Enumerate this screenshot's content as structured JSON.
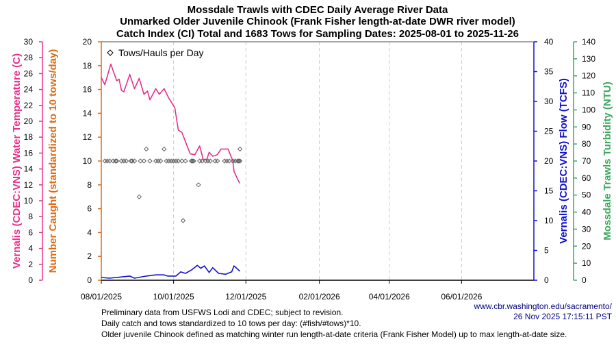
{
  "chart_data": {
    "type": "line",
    "title": [
      "Mossdale Trawls with CDEC Daily Average River Data",
      "Unmarked Older Juvenile Chinook (Frank Fisher length-at-date DWR river model)",
      "Catch Index (CI) Total and 1683 Tows for Sampling Dates: 2025-08-01 to 2025-11-26"
    ],
    "xlim": [
      "2025-08-01",
      "2026-08-01"
    ],
    "x_ticks": [
      "08/01/2025",
      "10/01/2025",
      "12/01/2025",
      "02/01/2026",
      "04/01/2026",
      "06/01/2026"
    ],
    "x_tick_dates": [
      "2025-08-01",
      "2025-10-01",
      "2025-12-01",
      "2026-02-01",
      "2026-04-01",
      "2026-06-01"
    ],
    "grid": "vertical dashed at x ticks",
    "legend": {
      "placement": "top-left",
      "entries": [
        "Tows/Hauls per Day"
      ]
    },
    "axes": {
      "temperature": {
        "label": "Vernalis (CDEC:VNS) Water Temperature (C)",
        "ylim": [
          0,
          30
        ],
        "ticks": [
          0,
          2,
          4,
          6,
          8,
          10,
          12,
          14,
          16,
          18,
          20,
          22,
          24,
          26,
          28,
          30
        ],
        "color": "#e8308a"
      },
      "count": {
        "label": "Number Caught (standardized to 10 tows/day)",
        "ylim": [
          0,
          20
        ],
        "ticks": [
          0,
          2,
          4,
          6,
          8,
          10,
          12,
          14,
          16,
          18,
          20
        ],
        "color": "#e06a10"
      },
      "flow": {
        "label": "Vernalis (CDEC:VNS) Flow (TCFS)",
        "ylim": [
          0,
          40
        ],
        "ticks": [
          0,
          5,
          10,
          15,
          20,
          25,
          30,
          35,
          40
        ],
        "color": "#1010d0"
      },
      "turbidity": {
        "label": "Mossdale Trawls Turbidity (NTU)",
        "ylim": [
          0,
          140
        ],
        "ticks": [
          0,
          10,
          20,
          30,
          40,
          50,
          60,
          70,
          80,
          90,
          100,
          110,
          120,
          130,
          140
        ],
        "color": "#3aa860"
      }
    },
    "series": [
      {
        "axis": "temperature",
        "color": "#e8308a",
        "x": [
          "2025-08-01",
          "2025-08-04",
          "2025-08-09",
          "2025-08-14",
          "2025-08-16",
          "2025-08-18",
          "2025-08-20",
          "2025-08-25",
          "2025-08-29",
          "2025-09-02",
          "2025-09-06",
          "2025-09-09",
          "2025-09-11",
          "2025-09-16",
          "2025-09-19",
          "2025-09-23",
          "2025-09-27",
          "2025-10-02",
          "2025-10-05",
          "2025-10-08",
          "2025-10-15",
          "2025-10-19",
          "2025-10-23",
          "2025-10-26",
          "2025-10-29",
          "2025-10-31",
          "2025-11-03",
          "2025-11-07",
          "2025-11-10",
          "2025-11-16",
          "2025-11-20",
          "2025-11-21",
          "2025-11-25",
          "2025-11-26"
        ],
        "y": [
          25.5,
          24.6,
          27.2,
          25.1,
          25.3,
          23.9,
          23.7,
          25.9,
          24.1,
          25.4,
          23.4,
          23.8,
          22.7,
          24.1,
          23.4,
          24.1,
          22.9,
          21.7,
          18.9,
          18.6,
          15.9,
          15.8,
          16.9,
          15.2,
          15.2,
          16.1,
          15.6,
          15.8,
          16.5,
          16.5,
          15.0,
          13.7,
          12.4,
          12.2
        ]
      },
      {
        "axis": "flow",
        "color": "#1010d0",
        "x": [
          "2025-08-01",
          "2025-08-08",
          "2025-08-25",
          "2025-08-29",
          "2025-09-08",
          "2025-09-16",
          "2025-09-23",
          "2025-09-26",
          "2025-10-03",
          "2025-10-07",
          "2025-10-11",
          "2025-10-16",
          "2025-10-21",
          "2025-10-24",
          "2025-10-27",
          "2025-10-31",
          "2025-11-03",
          "2025-11-08",
          "2025-11-14",
          "2025-11-19",
          "2025-11-21",
          "2025-11-26"
        ],
        "y": [
          0.46,
          0.35,
          0.7,
          0.35,
          0.7,
          0.9,
          0.9,
          0.7,
          0.7,
          1.4,
          1.15,
          1.7,
          2.5,
          2.0,
          2.4,
          1.3,
          2.1,
          1.15,
          1.0,
          1.4,
          2.4,
          1.5
        ]
      },
      {
        "name": "Tows/Hauls per Day",
        "axis": "count",
        "marker": "diamond",
        "color": "#555555",
        "x": [
          "2025-08-04",
          "2025-08-06",
          "2025-08-08",
          "2025-08-11",
          "2025-08-13",
          "2025-08-14",
          "2025-08-18",
          "2025-08-20",
          "2025-08-22",
          "2025-08-26",
          "2025-08-27",
          "2025-08-29",
          "2025-09-03",
          "2025-09-06",
          "2025-09-11",
          "2025-09-16",
          "2025-09-18",
          "2025-09-20",
          "2025-09-25",
          "2025-09-27",
          "2025-09-29",
          "2025-10-01",
          "2025-10-03",
          "2025-10-05",
          "2025-10-08",
          "2025-10-11",
          "2025-10-16",
          "2025-10-17",
          "2025-10-18",
          "2025-10-23",
          "2025-10-25",
          "2025-10-28",
          "2025-10-30",
          "2025-11-01",
          "2025-11-05",
          "2025-11-07",
          "2025-11-13",
          "2025-11-15",
          "2025-11-17",
          "2025-11-20",
          "2025-11-22",
          "2025-11-24",
          "2025-11-25",
          "2025-11-26",
          "2025-09-08",
          "2025-09-23",
          "2025-11-26",
          "2025-09-02",
          "2025-10-09",
          "2025-10-22"
        ],
        "y": [
          10,
          10,
          10,
          10,
          10,
          10,
          10,
          10,
          10,
          10,
          10,
          10,
          10,
          10,
          10,
          10,
          10,
          10,
          10,
          10,
          10,
          10,
          10,
          10,
          10,
          10,
          10,
          10,
          10,
          10,
          10,
          10,
          10,
          10,
          10,
          10,
          10,
          10,
          10,
          10,
          10,
          10,
          10,
          10,
          11,
          11,
          11,
          7,
          5,
          8
        ]
      }
    ]
  },
  "footer": {
    "url": "www.cbr.washington.edu/sacramento/",
    "timestamp": "26 Nov 2025 17:15:11 PST",
    "notes": [
      "Preliminary data from USFWS Lodi and CDEC; subject to revision.",
      "Daily catch and tows standardized to 10 tows per day: (#fish/#tows)*10.",
      "Older juvenile Chinook defined as matching winter run length-at-date criteria (Frank Fisher Model) up to max length-at-date size."
    ]
  }
}
